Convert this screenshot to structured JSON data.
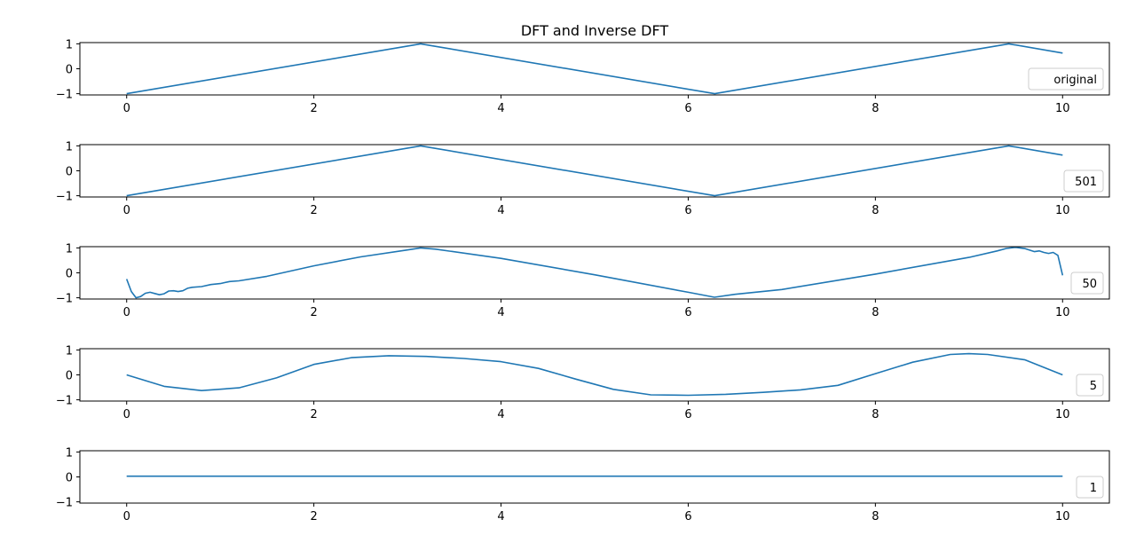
{
  "title": "DFT and Inverse DFT",
  "colors": {
    "line": "#1f77b4",
    "axis": "#000000",
    "legend_border": "#cccccc",
    "background": "#ffffff"
  },
  "chart_data": [
    {
      "type": "line",
      "legend": "original",
      "legend_placement": "lower right",
      "xlim": [
        -0.5,
        10.5
      ],
      "ylim": [
        -1.05,
        1.05
      ],
      "xticks": [
        0,
        2,
        4,
        6,
        8,
        10
      ],
      "yticks": [
        -1,
        0,
        1
      ],
      "grid": false,
      "series": [
        {
          "name": "original",
          "x": [
            0,
            3.1416,
            6.2832,
            9.4248,
            10
          ],
          "y": [
            -1,
            1,
            -1,
            1,
            0.63
          ]
        }
      ]
    },
    {
      "type": "line",
      "legend": "501",
      "legend_placement": "lower right",
      "xlim": [
        -0.5,
        10.5
      ],
      "ylim": [
        -1.05,
        1.05
      ],
      "xticks": [
        0,
        2,
        4,
        6,
        8,
        10
      ],
      "yticks": [
        -1,
        0,
        1
      ],
      "grid": false,
      "series": [
        {
          "name": "501",
          "x": [
            0,
            3.1416,
            6.2832,
            9.4248,
            10
          ],
          "y": [
            -1,
            1,
            -1,
            1,
            0.63
          ]
        }
      ]
    },
    {
      "type": "line",
      "legend": "50",
      "legend_placement": "lower right",
      "xlim": [
        -0.5,
        10.5
      ],
      "ylim": [
        -1.05,
        1.05
      ],
      "xticks": [
        0,
        2,
        4,
        6,
        8,
        10
      ],
      "yticks": [
        -1,
        0,
        1
      ],
      "grid": false,
      "series": [
        {
          "name": "50",
          "x": [
            0,
            0.05,
            0.1,
            0.15,
            0.2,
            0.25,
            0.3,
            0.35,
            0.4,
            0.45,
            0.5,
            0.55,
            0.6,
            0.65,
            0.7,
            0.8,
            0.9,
            1.0,
            1.1,
            1.2,
            1.5,
            2.0,
            2.5,
            3.0,
            3.14,
            3.3,
            4.0,
            5.0,
            6.0,
            6.28,
            6.5,
            7.0,
            8.0,
            9.0,
            9.3,
            9.4,
            9.5,
            9.6,
            9.7,
            9.75,
            9.8,
            9.85,
            9.9,
            9.95,
            10.0
          ],
          "y": [
            -0.25,
            -0.75,
            -1.0,
            -0.95,
            -0.82,
            -0.78,
            -0.83,
            -0.88,
            -0.84,
            -0.73,
            -0.72,
            -0.75,
            -0.72,
            -0.62,
            -0.58,
            -0.55,
            -0.47,
            -0.43,
            -0.35,
            -0.32,
            -0.14,
            0.28,
            0.64,
            0.92,
            1.0,
            0.95,
            0.58,
            -0.08,
            -0.78,
            -0.98,
            -0.86,
            -0.67,
            -0.05,
            0.62,
            0.88,
            0.98,
            1.02,
            0.97,
            0.85,
            0.88,
            0.82,
            0.78,
            0.82,
            0.7,
            -0.1
          ]
        }
      ]
    },
    {
      "type": "line",
      "legend": "5",
      "legend_placement": "lower right",
      "xlim": [
        -0.5,
        10.5
      ],
      "ylim": [
        -1.05,
        1.05
      ],
      "xticks": [
        0,
        2,
        4,
        6,
        8,
        10
      ],
      "yticks": [
        -1,
        0,
        1
      ],
      "grid": false,
      "series": [
        {
          "name": "5",
          "x": [
            0,
            0.4,
            0.8,
            1.2,
            1.6,
            2.0,
            2.4,
            2.8,
            3.2,
            3.6,
            4.0,
            4.4,
            4.8,
            5.2,
            5.6,
            6.0,
            6.4,
            6.8,
            7.2,
            7.6,
            8.0,
            8.4,
            8.8,
            9.0,
            9.2,
            9.6,
            10.0
          ],
          "y": [
            0.0,
            -0.46,
            -0.63,
            -0.52,
            -0.12,
            0.42,
            0.69,
            0.77,
            0.74,
            0.66,
            0.53,
            0.26,
            -0.17,
            -0.58,
            -0.8,
            -0.82,
            -0.78,
            -0.7,
            -0.6,
            -0.42,
            0.05,
            0.51,
            0.82,
            0.85,
            0.82,
            0.6,
            0.0
          ]
        }
      ]
    },
    {
      "type": "line",
      "legend": "1",
      "legend_placement": "lower right",
      "xlim": [
        -0.5,
        10.5
      ],
      "ylim": [
        -1.05,
        1.05
      ],
      "xticks": [
        0,
        2,
        4,
        6,
        8,
        10
      ],
      "yticks": [
        -1,
        0,
        1
      ],
      "grid": false,
      "series": [
        {
          "name": "1",
          "x": [
            0,
            10
          ],
          "y": [
            0.03,
            0.03
          ]
        }
      ]
    }
  ]
}
